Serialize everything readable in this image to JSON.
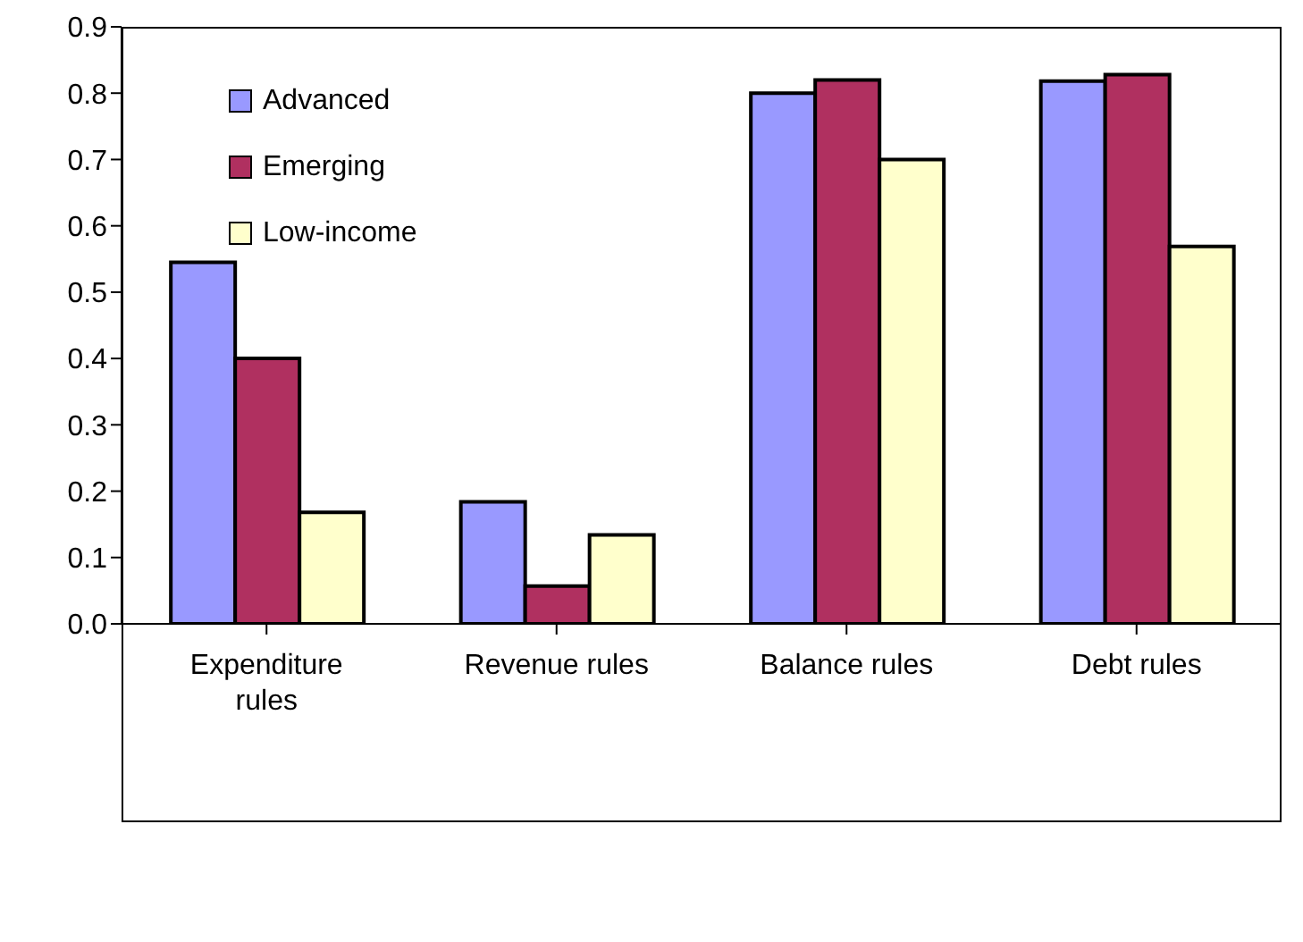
{
  "chart_data": {
    "type": "bar",
    "categories": [
      "Expenditure rules",
      "Revenue rules",
      "Balance rules",
      "Debt rules"
    ],
    "series": [
      {
        "name": "Advanced",
        "color": "#9999ff",
        "values": [
          0.545,
          0.184,
          0.8,
          0.818
        ]
      },
      {
        "name": "Emerging",
        "color": "#b03060",
        "values": [
          0.4,
          0.057,
          0.82,
          0.828
        ]
      },
      {
        "name": "Low-income",
        "color": "#ffffcc",
        "values": [
          0.168,
          0.134,
          0.7,
          0.569
        ]
      }
    ],
    "ylim": [
      0,
      0.9
    ],
    "yticks": [
      {
        "value": 0,
        "label": "0.0"
      },
      0.1,
      0.2,
      0.3,
      0.4,
      0.5,
      0.6,
      0.7,
      0.8,
      0.9
    ],
    "grid": false,
    "legend": "top left"
  }
}
